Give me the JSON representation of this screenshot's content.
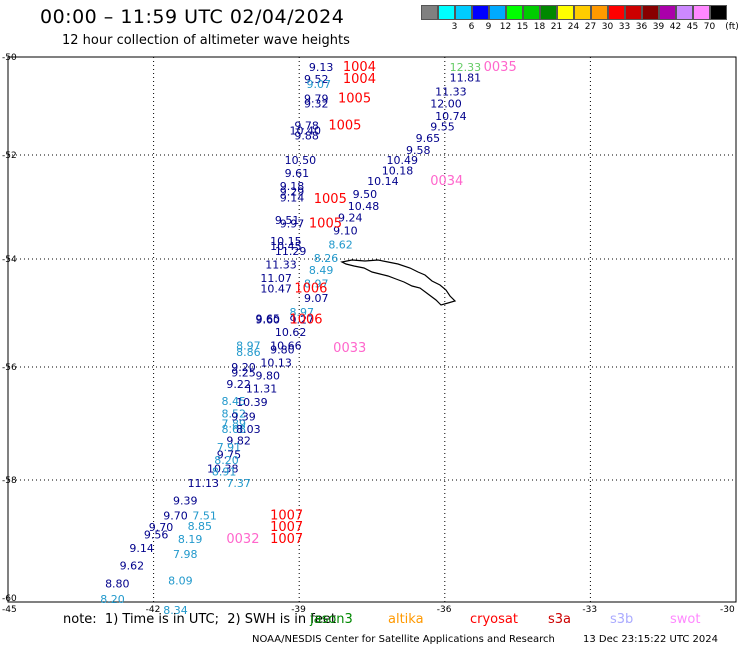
{
  "title": "00:00 – 11:59 UTC 02/04/2024",
  "subtitle": "12 hour collection of altimeter wave heights",
  "legend": {
    "unit_label": "(ft)",
    "bins": [
      {
        "label": "",
        "color": "#808080"
      },
      {
        "label": "3",
        "color": "#00ffff"
      },
      {
        "label": "6",
        "color": "#00ccff"
      },
      {
        "label": "9",
        "color": "#0000ff"
      },
      {
        "label": "12",
        "color": "#00aaff"
      },
      {
        "label": "15",
        "color": "#00ff00"
      },
      {
        "label": "18",
        "color": "#00cc00"
      },
      {
        "label": "21",
        "color": "#008800"
      },
      {
        "label": "24",
        "color": "#ffff00"
      },
      {
        "label": "27",
        "color": "#ffcc00"
      },
      {
        "label": "30",
        "color": "#ff9900"
      },
      {
        "label": "33",
        "color": "#ff0000"
      },
      {
        "label": "36",
        "color": "#cc0000"
      },
      {
        "label": "39",
        "color": "#880000"
      },
      {
        "label": "42",
        "color": "#aa00aa"
      },
      {
        "label": "45",
        "color": "#cc88ff"
      },
      {
        "label": "70",
        "color": "#ff88ff"
      },
      {
        "label": "",
        "color": "#000000"
      }
    ]
  },
  "axes": {
    "lat_labels": [
      "-50",
      "-52",
      "-54",
      "-56",
      "-58",
      "-60"
    ],
    "lon_labels": [
      "-45",
      "-42",
      "-39",
      "-36",
      "-33",
      "-30"
    ]
  },
  "colors": {
    "jason": "#00008b",
    "jason_light": "#2299cc",
    "pass_label": "#ff0000",
    "pink": "#ff66cc",
    "green": "#66cc66",
    "land": "#000000"
  },
  "wave_labels": [
    {
      "text": "9.13",
      "lon": -38.8,
      "lat": -50.2,
      "c": "jason"
    },
    {
      "text": "9.52",
      "lon": -38.9,
      "lat": -50.45,
      "c": "jason"
    },
    {
      "text": "9.07",
      "lon": -38.85,
      "lat": -50.55,
      "c": "jason_light"
    },
    {
      "text": "9.79",
      "lon": -38.9,
      "lat": -50.85,
      "c": "jason"
    },
    {
      "text": "9.32",
      "lon": -38.9,
      "lat": -50.95,
      "c": "jason"
    },
    {
      "text": "9.78",
      "lon": -39.1,
      "lat": -51.4,
      "c": "jason"
    },
    {
      "text": "10.40",
      "lon": -39.2,
      "lat": -51.5,
      "c": "jason"
    },
    {
      "text": "9.88",
      "lon": -39.1,
      "lat": -51.6,
      "c": "jason"
    },
    {
      "text": "10.50",
      "lon": -39.3,
      "lat": -52.1,
      "c": "jason"
    },
    {
      "text": "9.61",
      "lon": -39.3,
      "lat": -52.35,
      "c": "jason"
    },
    {
      "text": "9.18",
      "lon": -39.4,
      "lat": -52.6,
      "c": "jason"
    },
    {
      "text": "9.29",
      "lon": -39.4,
      "lat": -52.7,
      "c": "jason"
    },
    {
      "text": "9.14",
      "lon": -39.4,
      "lat": -52.82,
      "c": "jason"
    },
    {
      "text": "9.51",
      "lon": -39.5,
      "lat": -53.25,
      "c": "jason"
    },
    {
      "text": "9.97",
      "lon": -39.4,
      "lat": -53.32,
      "c": "jason"
    },
    {
      "text": "10.15",
      "lon": -39.6,
      "lat": -53.65,
      "c": "jason"
    },
    {
      "text": "10.45",
      "lon": -39.6,
      "lat": -53.75,
      "c": "jason"
    },
    {
      "text": "11.29",
      "lon": -39.5,
      "lat": -53.85,
      "c": "jason"
    },
    {
      "text": "11.33",
      "lon": -39.7,
      "lat": -54.1,
      "c": "jason"
    },
    {
      "text": "11.07",
      "lon": -39.8,
      "lat": -54.35,
      "c": "jason"
    },
    {
      "text": "10.47",
      "lon": -39.8,
      "lat": -54.55,
      "c": "jason"
    },
    {
      "text": "9.65",
      "lon": -39.9,
      "lat": -55.1,
      "c": "jason"
    },
    {
      "text": "9.60",
      "lon": -39.9,
      "lat": -55.12,
      "c": "jason"
    },
    {
      "text": "8.97",
      "lon": -40.3,
      "lat": -55.6,
      "c": "jason_light"
    },
    {
      "text": "8.86",
      "lon": -40.3,
      "lat": -55.72,
      "c": "jason_light"
    },
    {
      "text": "9.20",
      "lon": -40.4,
      "lat": -56.0,
      "c": "jason"
    },
    {
      "text": "9.25",
      "lon": -40.4,
      "lat": -56.1,
      "c": "jason"
    },
    {
      "text": "9.22",
      "lon": -40.5,
      "lat": -56.3,
      "c": "jason"
    },
    {
      "text": "8.45",
      "lon": -40.6,
      "lat": -56.6,
      "c": "jason_light"
    },
    {
      "text": "8.52",
      "lon": -40.6,
      "lat": -56.82,
      "c": "jason_light"
    },
    {
      "text": "7.89",
      "lon": -40.6,
      "lat": -57.0,
      "c": "jason_light"
    },
    {
      "text": "8.68",
      "lon": -40.6,
      "lat": -57.1,
      "c": "jason_light"
    },
    {
      "text": "9.82",
      "lon": -40.5,
      "lat": -57.3,
      "c": "jason"
    },
    {
      "text": "7.91",
      "lon": -40.7,
      "lat": -57.42,
      "c": "jason_light"
    },
    {
      "text": "9.75",
      "lon": -40.7,
      "lat": -57.55,
      "c": "jason"
    },
    {
      "text": "8.20",
      "lon": -40.75,
      "lat": -57.65,
      "c": "jason_light"
    },
    {
      "text": "10.38",
      "lon": -40.9,
      "lat": -57.8,
      "c": "jason"
    },
    {
      "text": "8.91",
      "lon": -40.8,
      "lat": -57.85,
      "c": "jason_light"
    },
    {
      "text": "11.13",
      "lon": -41.3,
      "lat": -58.05,
      "c": "jason"
    },
    {
      "text": "7.37",
      "lon": -40.5,
      "lat": -58.05,
      "c": "jason_light"
    },
    {
      "text": "9.39",
      "lon": -41.6,
      "lat": -58.35,
      "c": "jason"
    },
    {
      "text": "9.70",
      "lon": -41.8,
      "lat": -58.6,
      "c": "jason"
    },
    {
      "text": "7.51",
      "lon": -41.2,
      "lat": -58.6,
      "c": "jason_light"
    },
    {
      "text": "9.70",
      "lon": -42.1,
      "lat": -58.8,
      "c": "jason"
    },
    {
      "text": "8.85",
      "lon": -41.3,
      "lat": -58.78,
      "c": "jason_light"
    },
    {
      "text": "9.56",
      "lon": -42.2,
      "lat": -58.92,
      "c": "jason"
    },
    {
      "text": "8.19",
      "lon": -41.5,
      "lat": -59.0,
      "c": "jason_light"
    },
    {
      "text": "9.14",
      "lon": -42.5,
      "lat": -59.15,
      "c": "jason"
    },
    {
      "text": "7.98",
      "lon": -41.6,
      "lat": -59.25,
      "c": "jason_light"
    },
    {
      "text": "9.62",
      "lon": -42.7,
      "lat": -59.45,
      "c": "jason"
    },
    {
      "text": "8.80",
      "lon": -43.0,
      "lat": -59.75,
      "c": "jason"
    },
    {
      "text": "8.09",
      "lon": -41.7,
      "lat": -59.7,
      "c": "jason_light"
    },
    {
      "text": "8.20",
      "lon": -43.1,
      "lat": -60.02,
      "c": "jason_light"
    },
    {
      "text": "8.34",
      "lon": -41.8,
      "lat": -60.2,
      "c": "jason_light"
    },
    {
      "text": "12.33",
      "lon": -35.9,
      "lat": -50.2,
      "c": "green"
    },
    {
      "text": "11.81",
      "lon": -35.9,
      "lat": -50.42,
      "c": "jason"
    },
    {
      "text": "11.33",
      "lon": -36.2,
      "lat": -50.7,
      "c": "jason"
    },
    {
      "text": "12.00",
      "lon": -36.3,
      "lat": -50.95,
      "c": "jason"
    },
    {
      "text": "10.74",
      "lon": -36.2,
      "lat": -51.2,
      "c": "jason"
    },
    {
      "text": "9.55",
      "lon": -36.3,
      "lat": -51.42,
      "c": "jason"
    },
    {
      "text": "9.65",
      "lon": -36.6,
      "lat": -51.65,
      "c": "jason"
    },
    {
      "text": "9.58",
      "lon": -36.8,
      "lat": -51.9,
      "c": "jason"
    },
    {
      "text": "10.49",
      "lon": -37.2,
      "lat": -52.1,
      "c": "jason"
    },
    {
      "text": "10.18",
      "lon": -37.3,
      "lat": -52.3,
      "c": "jason"
    },
    {
      "text": "10.14",
      "lon": -37.6,
      "lat": -52.5,
      "c": "jason"
    },
    {
      "text": "9.50",
      "lon": -37.9,
      "lat": -52.75,
      "c": "jason"
    },
    {
      "text": "10.48",
      "lon": -38.0,
      "lat": -52.98,
      "c": "jason"
    },
    {
      "text": "9.24",
      "lon": -38.2,
      "lat": -53.2,
      "c": "jason"
    },
    {
      "text": "9.10",
      "lon": -38.3,
      "lat": -53.45,
      "c": "jason"
    },
    {
      "text": "8.62",
      "lon": -38.4,
      "lat": -53.72,
      "c": "jason_light"
    },
    {
      "text": "8.26",
      "lon": -38.7,
      "lat": -53.98,
      "c": "jason_light"
    },
    {
      "text": "8.49",
      "lon": -38.8,
      "lat": -54.2,
      "c": "jason_light"
    },
    {
      "text": "8.97",
      "lon": -38.9,
      "lat": -54.45,
      "c": "jason_light"
    },
    {
      "text": "9.07",
      "lon": -38.9,
      "lat": -54.72,
      "c": "jason"
    },
    {
      "text": "8.97",
      "lon": -39.2,
      "lat": -54.98,
      "c": "jason_light"
    },
    {
      "text": "9.27",
      "lon": -39.2,
      "lat": -55.12,
      "c": "jason"
    },
    {
      "text": "10.62",
      "lon": -39.5,
      "lat": -55.35,
      "c": "jason"
    },
    {
      "text": "10.66",
      "lon": -39.6,
      "lat": -55.6,
      "c": "jason"
    },
    {
      "text": "9.80",
      "lon": -39.6,
      "lat": -55.68,
      "c": "jason"
    },
    {
      "text": "10.13",
      "lon": -39.8,
      "lat": -55.92,
      "c": "jason"
    },
    {
      "text": "9.80",
      "lon": -39.9,
      "lat": -56.15,
      "c": "jason"
    },
    {
      "text": "11.31",
      "lon": -40.1,
      "lat": -56.38,
      "c": "jason"
    },
    {
      "text": "10.39",
      "lon": -40.3,
      "lat": -56.62,
      "c": "jason"
    },
    {
      "text": "9.39",
      "lon": -40.4,
      "lat": -56.88,
      "c": "jason"
    },
    {
      "text": "8.03",
      "lon": -40.3,
      "lat": -57.1,
      "c": "jason"
    }
  ],
  "pass_labels": [
    {
      "text": "1004",
      "lon": -38.1,
      "lat": -50.2,
      "c": "pass_label"
    },
    {
      "text": "1004",
      "lon": -38.1,
      "lat": -50.45,
      "c": "pass_label"
    },
    {
      "text": "1005",
      "lon": -38.2,
      "lat": -50.85,
      "c": "pass_label"
    },
    {
      "text": "1005",
      "lon": -38.4,
      "lat": -51.4,
      "c": "pass_label"
    },
    {
      "text": "1005",
      "lon": -38.7,
      "lat": -52.85,
      "c": "pass_label"
    },
    {
      "text": "1005",
      "lon": -38.8,
      "lat": -53.32,
      "c": "pass_label"
    },
    {
      "text": "1006",
      "lon": -39.1,
      "lat": -54.55,
      "c": "pass_label"
    },
    {
      "text": "1006",
      "lon": -39.2,
      "lat": -55.12,
      "c": "pass_label"
    },
    {
      "text": "1007",
      "lon": -39.6,
      "lat": -58.6,
      "c": "pass_label"
    },
    {
      "text": "1007",
      "lon": -39.6,
      "lat": -58.8,
      "c": "pass_label"
    },
    {
      "text": "1007",
      "lon": -39.6,
      "lat": -59.0,
      "c": "pass_label"
    },
    {
      "text": "0035",
      "lon": -35.2,
      "lat": -50.2,
      "c": "pink"
    },
    {
      "text": "0034",
      "lon": -36.3,
      "lat": -52.5,
      "c": "pink"
    },
    {
      "text": "0033",
      "lon": -38.3,
      "lat": -55.65,
      "c": "pink"
    },
    {
      "text": "0032",
      "lon": -40.5,
      "lat": -59.0,
      "c": "pink"
    }
  ],
  "note": {
    "text": "note:  1) Time is in UTC;  2) SWH is in feet",
    "satellites": [
      {
        "name": "jason3",
        "color": "#008800"
      },
      {
        "name": "altika",
        "color": "#ff9900"
      },
      {
        "name": "cryosat",
        "color": "#ff0000"
      },
      {
        "name": "s3a",
        "color": "#cc0000"
      },
      {
        "name": "s3b",
        "color": "#aaaaff"
      },
      {
        "name": "swot",
        "color": "#ff88ff"
      }
    ]
  },
  "footer": {
    "credit": "NOAA/NESDIS Center for Satellite Applications and Research",
    "timestamp": "13 Dec 23:15:22 UTC 2024"
  }
}
